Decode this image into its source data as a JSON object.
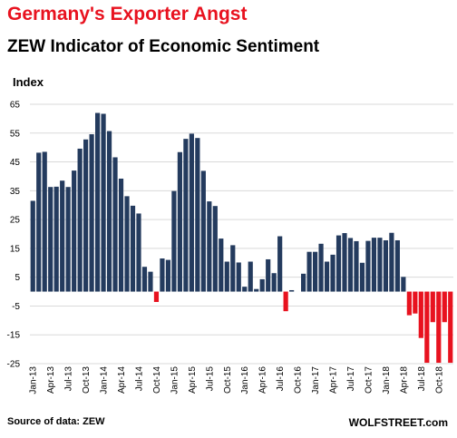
{
  "chart_data": {
    "type": "bar",
    "title": "Germany's Exporter Angst",
    "subtitle": "ZEW Indicator of Economic Sentiment",
    "ylabel": "Index",
    "xlabel": "",
    "ylim": [
      -25,
      65
    ],
    "yticks": [
      -25,
      -15,
      -5,
      5,
      15,
      25,
      35,
      45,
      55,
      65
    ],
    "grid": true,
    "start": "Jan-13",
    "x_tick_labels": [
      "Jan-13",
      "Apr-13",
      "Jul-13",
      "Oct-13",
      "Jan-14",
      "Apr-14",
      "Jul-14",
      "Oct-14",
      "Jan-15",
      "Apr-15",
      "Jul-15",
      "Oct-15",
      "Jan-16",
      "Apr-16",
      "Jul-16",
      "Oct-16",
      "Jan-17",
      "Apr-17",
      "Jul-17",
      "Oct-17",
      "Jan-18",
      "Apr-18",
      "Jul-18",
      "Oct-18"
    ],
    "x_tick_every": 3,
    "positive_color": "#243b5e",
    "negative_color": "#e8121f",
    "values": [
      31.5,
      48.2,
      48.5,
      36.3,
      36.4,
      38.5,
      36.3,
      42.0,
      49.6,
      52.8,
      54.6,
      62.0,
      61.7,
      55.7,
      46.6,
      39.2,
      33.1,
      29.8,
      27.1,
      8.6,
      6.9,
      -3.6,
      11.5,
      11.0,
      34.9,
      48.4,
      53.0,
      54.8,
      53.3,
      41.9,
      31.3,
      29.7,
      18.4,
      10.4,
      16.1,
      10.1,
      1.7,
      10.4,
      0.9,
      4.3,
      11.2,
      6.4,
      19.2,
      -6.8,
      0.5,
      0.0,
      6.2,
      13.8,
      13.8,
      16.6,
      10.4,
      12.8,
      19.5,
      20.3,
      18.6,
      17.5,
      10.0,
      17.6,
      18.7,
      18.7,
      17.8,
      20.4,
      17.8,
      5.1,
      -8.2,
      -7.6,
      -16.1,
      -24.7,
      -10.6,
      -24.7,
      -10.6,
      -24.7
    ]
  },
  "source": "Source of data: ZEW",
  "watermark": "WOLFSTREET.com"
}
